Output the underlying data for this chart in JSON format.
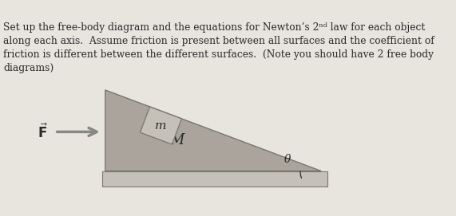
{
  "bg_color": "#e8e4de",
  "text_color": "#2a2a2a",
  "title_text": "Set up the free-body diagram and the equations for Newton’s 2ⁿᵈ law for each object\nalong each axis.  Assume friction is present between all surfaces and the coefficient of\nfriction is different between the different surfaces.  (Note you should have 2 free body\ndiagrams)",
  "title_fontsize": 8.8,
  "wedge_color": "#aaa49c",
  "wedge_edge": "#777770",
  "block_m_color": "#c5c0b8",
  "block_m_edge": "#777770",
  "ground_color": "#c5c0b8",
  "ground_edge": "#777770",
  "label_M": "M",
  "label_m": "m",
  "label_theta": "θ",
  "arrow_color": "#888882",
  "arrow_head_color": "#777770"
}
